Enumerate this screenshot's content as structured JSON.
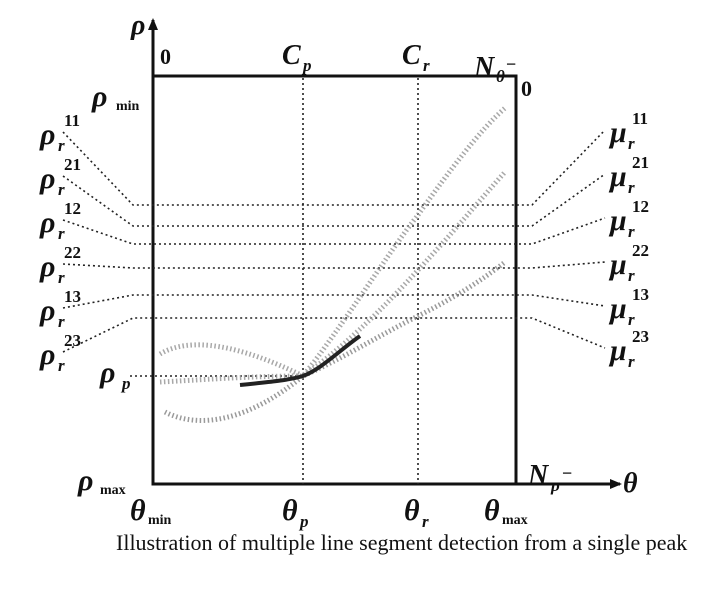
{
  "diagram": {
    "axis_labels": {
      "y": "ρ",
      "x": "θ"
    },
    "corner_labels": {
      "top_left_zero": "0",
      "top_right_zero": "0",
      "top_right_n": "N",
      "top_right_n_sub": "θ",
      "top_right_n_sup": "−",
      "bottom_right_n": "N",
      "bottom_right_n_sub": "ρ",
      "bottom_right_n_sup": "−"
    },
    "top_labels": [
      {
        "main": "C",
        "sub": "p"
      },
      {
        "main": "C",
        "sub": "r"
      }
    ],
    "left_labels": [
      {
        "main": "ρ",
        "sub": "min",
        "sup": ""
      },
      {
        "main": "ρ",
        "sub": "r",
        "sup": "11"
      },
      {
        "main": "ρ",
        "sub": "r",
        "sup": "21"
      },
      {
        "main": "ρ",
        "sub": "r",
        "sup": "12"
      },
      {
        "main": "ρ",
        "sub": "r",
        "sup": "22"
      },
      {
        "main": "ρ",
        "sub": "r",
        "sup": "13"
      },
      {
        "main": "ρ",
        "sub": "r",
        "sup": "23"
      },
      {
        "main": "ρ",
        "sub": "p",
        "sup": ""
      },
      {
        "main": "ρ",
        "sub": "max",
        "sup": ""
      }
    ],
    "right_labels": [
      {
        "main": "μ",
        "sub": "r",
        "sup": "11"
      },
      {
        "main": "μ",
        "sub": "r",
        "sup": "21"
      },
      {
        "main": "μ",
        "sub": "r",
        "sup": "12"
      },
      {
        "main": "μ",
        "sub": "r",
        "sup": "22"
      },
      {
        "main": "μ",
        "sub": "r",
        "sup": "13"
      },
      {
        "main": "μ",
        "sub": "r",
        "sup": "23"
      }
    ],
    "bottom_labels": [
      {
        "main": "θ",
        "sub": "min"
      },
      {
        "main": "θ",
        "sub": "p"
      },
      {
        "main": "θ",
        "sub": "r"
      },
      {
        "main": "θ",
        "sub": "max"
      }
    ]
  },
  "caption": "Illustration of multiple line segment detection from a single peak"
}
